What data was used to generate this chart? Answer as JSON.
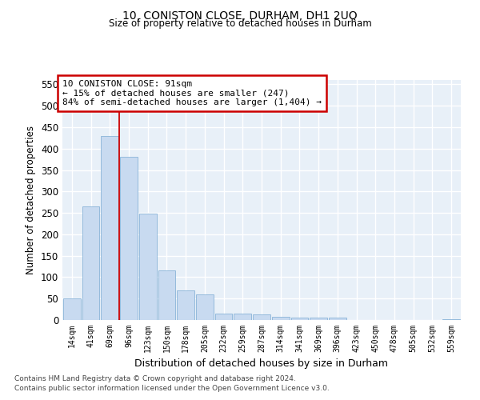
{
  "title1": "10, CONISTON CLOSE, DURHAM, DH1 2UQ",
  "title2": "Size of property relative to detached houses in Durham",
  "xlabel": "Distribution of detached houses by size in Durham",
  "ylabel": "Number of detached properties",
  "categories": [
    "14sqm",
    "41sqm",
    "69sqm",
    "96sqm",
    "123sqm",
    "150sqm",
    "178sqm",
    "205sqm",
    "232sqm",
    "259sqm",
    "287sqm",
    "314sqm",
    "341sqm",
    "369sqm",
    "396sqm",
    "423sqm",
    "450sqm",
    "478sqm",
    "505sqm",
    "532sqm",
    "559sqm"
  ],
  "values": [
    50,
    265,
    430,
    380,
    248,
    115,
    70,
    60,
    15,
    15,
    13,
    8,
    5,
    5,
    6,
    0,
    0,
    0,
    0,
    0,
    2
  ],
  "bar_color": "#c8daf0",
  "bar_edge_color": "#8ab4d8",
  "vline_x_bar": 3,
  "vline_color": "#cc0000",
  "annotation_line1": "10 CONISTON CLOSE: 91sqm",
  "annotation_line2": "← 15% of detached houses are smaller (247)",
  "annotation_line3": "84% of semi-detached houses are larger (1,404) →",
  "annotation_box_color": "white",
  "annotation_box_edge": "#cc0000",
  "ylim": [
    0,
    560
  ],
  "yticks": [
    0,
    50,
    100,
    150,
    200,
    250,
    300,
    350,
    400,
    450,
    500,
    550
  ],
  "background_color": "#e8f0f8",
  "grid_color": "#ffffff",
  "footer1": "Contains HM Land Registry data © Crown copyright and database right 2024.",
  "footer2": "Contains public sector information licensed under the Open Government Licence v3.0."
}
